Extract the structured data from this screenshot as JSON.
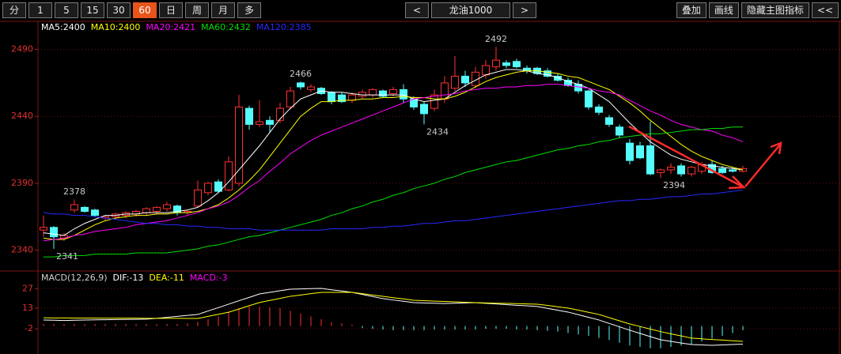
{
  "toolbar": {
    "periods": [
      {
        "label": "分",
        "active": false
      },
      {
        "label": "1",
        "active": false
      },
      {
        "label": "5",
        "active": false
      },
      {
        "label": "15",
        "active": false
      },
      {
        "label": "30",
        "active": false
      },
      {
        "label": "60",
        "active": true
      },
      {
        "label": "日",
        "active": false
      },
      {
        "label": "周",
        "active": false
      },
      {
        "label": "月",
        "active": false
      },
      {
        "label": "多",
        "active": false
      }
    ],
    "prev": "<",
    "symbol": "龙油1000",
    "next": ">",
    "tools": [
      "叠加",
      "画线",
      "隐藏主图指标",
      "<<"
    ]
  },
  "chart_data": [
    {
      "type": "candlestick",
      "open": [
        2355,
        2357,
        2349,
        2370,
        2372,
        2370,
        2364,
        2365,
        2366,
        2367,
        2368,
        2369,
        2371,
        2373,
        2368,
        2373,
        2383,
        2391,
        2385,
        2390,
        2446,
        2434,
        2437,
        2437,
        2447,
        2465,
        2460,
        2461,
        2458,
        2456,
        2452,
        2455,
        2456,
        2459,
        2457,
        2460,
        2453,
        2449,
        2446,
        2453,
        2461,
        2470,
        2463,
        2471,
        2477,
        2480,
        2481,
        2476,
        2476,
        2474,
        2470,
        2467,
        2464,
        2459,
        2447,
        2439,
        2432,
        2420,
        2418,
        2418,
        2398,
        2400,
        2403,
        2397,
        2399,
        2404,
        2401,
        2400,
        2399
      ],
      "high": [
        2366,
        2358,
        2353,
        2378,
        2373,
        2371,
        2366,
        2368,
        2369,
        2370,
        2372,
        2373,
        2376,
        2374,
        2370,
        2392,
        2391,
        2393,
        2410,
        2456,
        2448,
        2452,
        2440,
        2450,
        2462,
        2466,
        2464,
        2462,
        2459,
        2458,
        2458,
        2460,
        2461,
        2460,
        2462,
        2464,
        2455,
        2451,
        2460,
        2470,
        2485,
        2474,
        2477,
        2482,
        2492,
        2482,
        2483,
        2478,
        2477,
        2476,
        2472,
        2469,
        2467,
        2460,
        2449,
        2441,
        2434,
        2423,
        2421,
        2436,
        2401,
        2405,
        2405,
        2403,
        2406,
        2407,
        2403,
        2402,
        2403
      ],
      "low": [
        2350,
        2341,
        2347,
        2368,
        2368,
        2365,
        2362,
        2363,
        2364,
        2365,
        2366,
        2367,
        2369,
        2366,
        2366,
        2372,
        2381,
        2383,
        2384,
        2388,
        2430,
        2432,
        2428,
        2435,
        2445,
        2460,
        2458,
        2456,
        2449,
        2450,
        2450,
        2453,
        2454,
        2454,
        2455,
        2450,
        2445,
        2434,
        2444,
        2450,
        2459,
        2462,
        2461,
        2468,
        2474,
        2476,
        2476,
        2472,
        2471,
        2469,
        2466,
        2462,
        2457,
        2445,
        2441,
        2432,
        2424,
        2404,
        2408,
        2396,
        2394,
        2397,
        2395,
        2395,
        2397,
        2397,
        2397,
        2398,
        2398
      ],
      "close": [
        2357,
        2350,
        2351,
        2374,
        2369,
        2366,
        2365,
        2367,
        2368,
        2369,
        2371,
        2372,
        2374,
        2368,
        2369,
        2385,
        2390,
        2384,
        2406,
        2447,
        2434,
        2436,
        2434,
        2446,
        2459,
        2462,
        2462,
        2457,
        2451,
        2451,
        2456,
        2458,
        2460,
        2455,
        2460,
        2453,
        2447,
        2442,
        2456,
        2465,
        2470,
        2465,
        2473,
        2478,
        2482,
        2478,
        2477,
        2474,
        2472,
        2470,
        2467,
        2463,
        2459,
        2447,
        2443,
        2434,
        2426,
        2407,
        2409,
        2397,
        2400,
        2402,
        2397,
        2402,
        2404,
        2398,
        2398,
        2399,
        2401
      ],
      "up_color": "#ff3030",
      "down_color": "#54fcfc",
      "ylim": [
        2325,
        2511
      ],
      "yticks": [
        2340,
        2390,
        2440,
        2490
      ],
      "grid": true,
      "high_marks": [
        2378,
        2466,
        2492
      ],
      "low_marks": [
        2341,
        2434,
        2394
      ],
      "series": [
        {
          "name": "MA5:2400",
          "color": "#ffffff",
          "values": [
            2353,
            2352,
            2351,
            2356,
            2360,
            2363,
            2366,
            2366,
            2367,
            2367,
            2368,
            2368,
            2368,
            2369,
            2370,
            2372,
            2377,
            2383,
            2391,
            2400,
            2409,
            2418,
            2428,
            2438,
            2446,
            2453,
            2456,
            2459,
            2458,
            2458,
            2457,
            2456,
            2456,
            2456,
            2456,
            2456,
            2453,
            2451,
            2452,
            2453,
            2458,
            2463,
            2467,
            2471,
            2473,
            2475,
            2475,
            2474,
            2472,
            2471,
            2469,
            2466,
            2464,
            2461,
            2456,
            2451,
            2443,
            2435,
            2428,
            2421,
            2416,
            2411,
            2408,
            2406,
            2404,
            2403,
            2402,
            2401,
            2400
          ]
        },
        {
          "name": "MA10:2400",
          "color": "#ffff00",
          "values": [
            2349,
            2348,
            2348,
            2351,
            2355,
            2359,
            2362,
            2364,
            2365,
            2366,
            2366,
            2367,
            2367,
            2368,
            2368,
            2369,
            2371,
            2374,
            2379,
            2385,
            2392,
            2400,
            2410,
            2420,
            2430,
            2440,
            2446,
            2451,
            2451,
            2452,
            2452,
            2453,
            2453,
            2454,
            2454,
            2455,
            2454,
            2454,
            2453,
            2453,
            2455,
            2458,
            2462,
            2466,
            2469,
            2471,
            2473,
            2474,
            2474,
            2473,
            2472,
            2470,
            2469,
            2466,
            2463,
            2460,
            2455,
            2450,
            2444,
            2437,
            2431,
            2425,
            2419,
            2414,
            2410,
            2407,
            2404,
            2402,
            2400
          ]
        },
        {
          "name": "MA20:2421",
          "color": "#ff00ff",
          "values": [
            2347,
            2348,
            2349,
            2351,
            2352,
            2354,
            2355,
            2356,
            2357,
            2359,
            2360,
            2361,
            2362,
            2364,
            2366,
            2368,
            2371,
            2373,
            2376,
            2381,
            2387,
            2392,
            2399,
            2405,
            2412,
            2417,
            2422,
            2426,
            2429,
            2432,
            2435,
            2438,
            2441,
            2444,
            2447,
            2450,
            2453,
            2454,
            2455,
            2456,
            2457,
            2459,
            2460,
            2461,
            2461,
            2462,
            2462,
            2463,
            2463,
            2464,
            2464,
            2463,
            2462,
            2461,
            2459,
            2458,
            2456,
            2452,
            2448,
            2444,
            2441,
            2437,
            2434,
            2432,
            2430,
            2429,
            2426,
            2424,
            2421
          ]
        },
        {
          "name": "MA60:2432",
          "color": "#00e000",
          "values": [
            2335,
            2335,
            2336,
            2336,
            2336,
            2337,
            2337,
            2337,
            2337,
            2338,
            2338,
            2338,
            2338,
            2339,
            2340,
            2341,
            2343,
            2344,
            2346,
            2348,
            2350,
            2351,
            2353,
            2355,
            2357,
            2359,
            2361,
            2363,
            2366,
            2368,
            2371,
            2373,
            2376,
            2378,
            2381,
            2383,
            2386,
            2388,
            2390,
            2393,
            2395,
            2398,
            2400,
            2402,
            2404,
            2406,
            2407,
            2409,
            2411,
            2413,
            2415,
            2416,
            2418,
            2419,
            2421,
            2422,
            2424,
            2425,
            2426,
            2427,
            2427,
            2428,
            2429,
            2430,
            2430,
            2431,
            2431,
            2432,
            2432
          ]
        },
        {
          "name": "MA120:2385",
          "color": "#2828ff",
          "values": [
            2368,
            2367,
            2367,
            2366,
            2366,
            2365,
            2364,
            2363,
            2362,
            2361,
            2360,
            2360,
            2359,
            2359,
            2358,
            2358,
            2357,
            2357,
            2356,
            2356,
            2356,
            2355,
            2355,
            2355,
            2355,
            2355,
            2355,
            2355,
            2356,
            2356,
            2356,
            2356,
            2357,
            2357,
            2358,
            2358,
            2359,
            2360,
            2360,
            2361,
            2362,
            2362,
            2363,
            2364,
            2365,
            2366,
            2367,
            2368,
            2369,
            2370,
            2371,
            2372,
            2373,
            2374,
            2375,
            2376,
            2377,
            2377,
            2378,
            2378,
            2379,
            2380,
            2380,
            2381,
            2382,
            2382,
            2383,
            2384,
            2385
          ]
        }
      ]
    },
    {
      "type": "macd",
      "title": "MACD(12,26,9)",
      "ylim": [
        -19,
        38
      ],
      "yticks": [
        -2,
        13,
        27
      ],
      "grid": true,
      "up_color": "#ff3030",
      "down_color": "#54fcfc",
      "series": [
        {
          "name": "DIF:-13",
          "color": "#ffffff",
          "style": "line",
          "values": [
            4.4,
            4.2,
            4.0,
            4.2,
            4.4,
            4.5,
            4.6,
            4.7,
            4.8,
            4.9,
            5.0,
            5.6,
            6.3,
            7.0,
            7.7,
            8.4,
            10.9,
            13.3,
            15.8,
            18.3,
            20.7,
            23.2,
            24.3,
            25.5,
            26.6,
            26.8,
            27.0,
            27.2,
            26.2,
            25.3,
            24.3,
            22.8,
            21.3,
            19.8,
            18.8,
            17.9,
            16.9,
            16.7,
            16.5,
            16.3,
            16.5,
            16.7,
            16.9,
            16.4,
            16.0,
            15.5,
            15.0,
            14.6,
            14.1,
            12.8,
            11.4,
            10.1,
            8.2,
            6.3,
            4.4,
            1.9,
            -0.5,
            -3.0,
            -5.3,
            -7.6,
            -9.9,
            -11.0,
            -12.2,
            -13.3,
            -13.6,
            -13.9,
            -13.6,
            -13.3,
            -13.0
          ]
        },
        {
          "name": "DEA:-11",
          "color": "#ffff00",
          "style": "line",
          "values": [
            6.0,
            5.9,
            5.9,
            5.8,
            5.8,
            5.8,
            5.7,
            5.7,
            5.7,
            5.7,
            5.6,
            5.6,
            5.6,
            5.6,
            5.5,
            5.5,
            7.0,
            8.5,
            10.0,
            12.3,
            14.7,
            17.0,
            18.5,
            20.0,
            21.5,
            22.4,
            23.4,
            24.3,
            24.3,
            24.3,
            24.3,
            23.4,
            22.4,
            21.5,
            20.5,
            19.6,
            18.6,
            18.3,
            18.0,
            17.8,
            17.5,
            17.2,
            16.9,
            16.7,
            16.5,
            16.4,
            16.2,
            16.0,
            15.8,
            14.9,
            13.9,
            13.0,
            11.5,
            9.9,
            8.4,
            6.1,
            3.8,
            1.5,
            -0.3,
            -2.2,
            -4.0,
            -5.6,
            -7.1,
            -8.7,
            -9.2,
            -9.7,
            -10.1,
            -10.6,
            -11.0
          ]
        },
        {
          "name": "MACD:-3",
          "color": "#ff00ff",
          "style": "histogram",
          "values": [
            1.5,
            1.5,
            1.5,
            1.5,
            1.5,
            1.5,
            1.5,
            1.5,
            1.5,
            1.5,
            1.5,
            1.5,
            1.5,
            1.5,
            2.0,
            3.0,
            5.0,
            7.0,
            10.0,
            13.0,
            14.0,
            14.0,
            13.5,
            13.0,
            11.0,
            9.0,
            7.0,
            5.0,
            3.0,
            2.0,
            1.0,
            -1.5,
            -2.0,
            -2.5,
            -3.0,
            -3.0,
            -3.0,
            -3.0,
            -2.5,
            -2.5,
            -2.5,
            -2.5,
            -2.5,
            -2.0,
            -2.0,
            -2.0,
            -2.5,
            -2.5,
            -3.0,
            -3.5,
            -4.0,
            -5.0,
            -6.0,
            -7.0,
            -8.5,
            -10.0,
            -12.0,
            -14.0,
            -15.0,
            -16.0,
            -16.0,
            -15.0,
            -14.0,
            -13.0,
            -11.0,
            -9.0,
            -7.0,
            -5.0,
            -3.0
          ]
        }
      ]
    }
  ]
}
